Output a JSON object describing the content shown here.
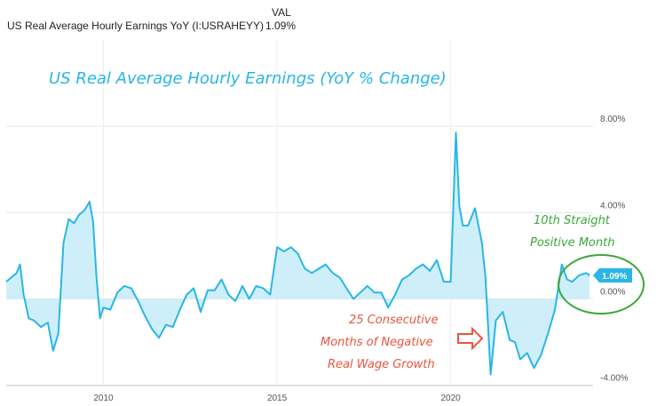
{
  "header": {
    "series_name": "US Real Average Hourly Earnings YoY (I:USRAHEYY)",
    "val_label": "VAL",
    "val_value": "1.09%"
  },
  "chart_data": {
    "type": "area",
    "title": "US Real Average Hourly Earnings (YoY % Change)",
    "xlabel": "",
    "ylabel": "",
    "xlim": [
      2007.2,
      2024.1
    ],
    "ylim": [
      -4,
      9
    ],
    "y_ticks": [
      8,
      4,
      0,
      -4
    ],
    "y_tick_labels": [
      "8.00%",
      "4.00%",
      "0.00%",
      "-4.00%"
    ],
    "x_ticks": [
      2010,
      2015,
      2020
    ],
    "x_tick_labels": [
      "2010",
      "2015",
      "2020"
    ],
    "grid": true,
    "colors": {
      "line": "#29b6e6",
      "fill": "#c5ecf8",
      "annotation_green": "#3aa83a",
      "annotation_red": "#e8553f"
    },
    "last_value_label": "1.09%",
    "annotations": [
      {
        "text_lines": [
          "10th Straight",
          "Positive Month"
        ],
        "color": "green"
      },
      {
        "text_lines": [
          "25 Consecutive",
          "Months of Negative",
          "Real Wage Growth"
        ],
        "color": "red"
      }
    ],
    "x": [
      2007.2,
      2007.35,
      2007.5,
      2007.6,
      2007.7,
      2007.85,
      2008.0,
      2008.2,
      2008.4,
      2008.55,
      2008.7,
      2008.85,
      2009.0,
      2009.15,
      2009.3,
      2009.45,
      2009.6,
      2009.7,
      2009.8,
      2009.9,
      2010.0,
      2010.2,
      2010.4,
      2010.6,
      2010.8,
      2011.0,
      2011.2,
      2011.4,
      2011.6,
      2011.8,
      2012.0,
      2012.2,
      2012.4,
      2012.6,
      2012.8,
      2013.0,
      2013.2,
      2013.4,
      2013.6,
      2013.8,
      2014.0,
      2014.2,
      2014.4,
      2014.6,
      2014.8,
      2015.0,
      2015.2,
      2015.4,
      2015.6,
      2015.8,
      2016.0,
      2016.2,
      2016.4,
      2016.6,
      2016.8,
      2017.0,
      2017.2,
      2017.4,
      2017.6,
      2017.8,
      2018.0,
      2018.2,
      2018.4,
      2018.6,
      2018.8,
      2019.0,
      2019.2,
      2019.4,
      2019.6,
      2019.8,
      2020.0,
      2020.15,
      2020.25,
      2020.35,
      2020.5,
      2020.7,
      2020.9,
      2021.0,
      2021.15,
      2021.3,
      2021.5,
      2021.7,
      2021.85,
      2022.0,
      2022.2,
      2022.4,
      2022.6,
      2022.8,
      2023.0,
      2023.2,
      2023.35,
      2023.5,
      2023.7,
      2023.9,
      2024.0
    ],
    "values": [
      0.8,
      1.0,
      1.2,
      1.6,
      0.2,
      -0.9,
      -1.0,
      -1.3,
      -1.1,
      -2.4,
      -1.6,
      2.6,
      3.7,
      3.5,
      3.9,
      4.1,
      4.5,
      3.6,
      1.0,
      -0.9,
      -0.4,
      -0.5,
      0.3,
      0.6,
      0.5,
      -0.1,
      -0.8,
      -1.4,
      -1.8,
      -1.2,
      -1.3,
      -0.5,
      0.2,
      0.5,
      -0.6,
      0.4,
      0.4,
      0.9,
      0.2,
      -0.1,
      0.6,
      0.0,
      0.6,
      0.5,
      0.2,
      2.4,
      2.2,
      2.4,
      2.1,
      1.4,
      1.2,
      1.4,
      1.6,
      1.2,
      1.0,
      0.5,
      0.0,
      0.3,
      0.6,
      0.3,
      0.3,
      -0.4,
      0.2,
      0.9,
      1.1,
      1.4,
      1.6,
      1.3,
      1.8,
      0.8,
      0.8,
      7.7,
      4.3,
      3.4,
      3.4,
      4.2,
      2.6,
      1.0,
      -3.5,
      -1.0,
      -0.6,
      -1.9,
      -2.0,
      -2.8,
      -2.5,
      -3.2,
      -2.6,
      -1.6,
      -0.5,
      1.6,
      0.9,
      0.8,
      1.1,
      1.2,
      1.09
    ]
  }
}
